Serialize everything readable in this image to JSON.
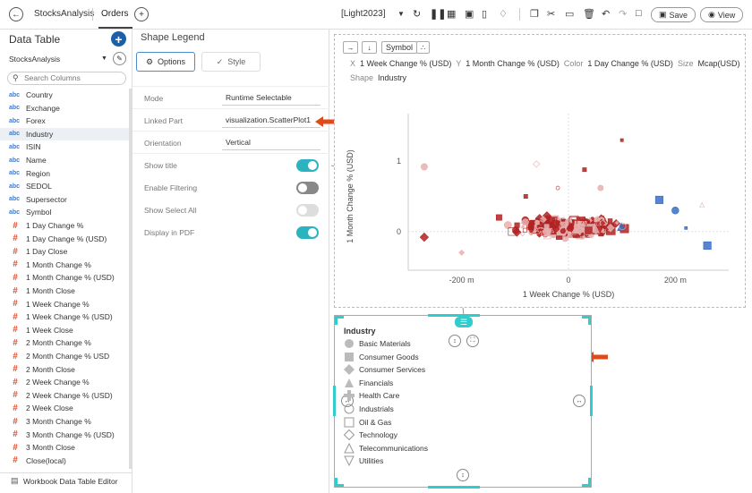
{
  "topbar": {
    "back_icon": "arrow-left-icon",
    "tabs": [
      {
        "label": "StocksAnalysis"
      },
      {
        "label": "Orders"
      }
    ],
    "add_tab_icon": "plus-icon",
    "theme": "[Light2023]",
    "save_label": "Save",
    "view_label": "View"
  },
  "left": {
    "title": "Data Table",
    "source": "StocksAnalysis",
    "search_placeholder": "Search Columns",
    "columns": [
      {
        "type": "abc",
        "name": "Country"
      },
      {
        "type": "abc",
        "name": "Exchange"
      },
      {
        "type": "abc",
        "name": "Forex"
      },
      {
        "type": "abc",
        "name": "Industry"
      },
      {
        "type": "abc",
        "name": "ISIN"
      },
      {
        "type": "abc",
        "name": "Name"
      },
      {
        "type": "abc",
        "name": "Region"
      },
      {
        "type": "abc",
        "name": "SEDOL"
      },
      {
        "type": "abc",
        "name": "Supersector"
      },
      {
        "type": "abc",
        "name": "Symbol"
      },
      {
        "type": "#",
        "name": "1 Day Change %"
      },
      {
        "type": "#",
        "name": "1 Day Change % (USD)"
      },
      {
        "type": "#",
        "name": "1 Day Close"
      },
      {
        "type": "#",
        "name": "1 Month Change %"
      },
      {
        "type": "#",
        "name": "1 Month Change % (USD)"
      },
      {
        "type": "#",
        "name": "1 Month Close"
      },
      {
        "type": "#",
        "name": "1 Week Change %"
      },
      {
        "type": "#",
        "name": "1 Week Change % (USD)"
      },
      {
        "type": "#",
        "name": "1 Week Close"
      },
      {
        "type": "#",
        "name": "2 Month Change %"
      },
      {
        "type": "#",
        "name": "2 Month Change % USD"
      },
      {
        "type": "#",
        "name": "2 Month Close"
      },
      {
        "type": "#",
        "name": "2 Week Change %"
      },
      {
        "type": "#",
        "name": "2 Week Change % (USD)"
      },
      {
        "type": "#",
        "name": "2 Week Close"
      },
      {
        "type": "#",
        "name": "3 Month Change %"
      },
      {
        "type": "#",
        "name": "3 Month Change % (USD)"
      },
      {
        "type": "#",
        "name": "3 Month Close"
      },
      {
        "type": "#",
        "name": "Close(local)"
      }
    ],
    "footer": "Workbook Data Table Editor"
  },
  "mid": {
    "title": "Shape Legend",
    "tab_options": "Options",
    "tab_style": "Style",
    "props": [
      {
        "label": "Mode",
        "value": "Runtime Selectable"
      },
      {
        "label": "Linked Part",
        "value": "visualization.ScatterPlot1"
      },
      {
        "label": "Orientation",
        "value": "Vertical"
      }
    ],
    "toggles": [
      {
        "label": "Show title",
        "state": "on"
      },
      {
        "label": "Enable Filtering",
        "state": "off"
      },
      {
        "label": "Show Select All",
        "state": "disabled"
      },
      {
        "label": "Display in PDF",
        "state": "on"
      }
    ]
  },
  "chart": {
    "symbol_label": "Symbol",
    "mapping": {
      "x_key": "X",
      "x_val": "1 Week Change % (USD)",
      "y_key": "Y",
      "y_val": "1 Month Change % (USD)",
      "color_key": "Color",
      "color_val": "1 Day Change % (USD)",
      "size_key": "Size",
      "size_val": "Mcap(USD)",
      "shape_key": "Shape",
      "shape_val": "Industry"
    }
  },
  "chart_data": {
    "type": "scatter",
    "xlabel": "1 Week Change % (USD)",
    "ylabel": "1 Month Change % (USD)",
    "xticks": [
      "-200 m",
      "0",
      "200 m"
    ],
    "yticks": [
      "1",
      "0"
    ],
    "xlim": [
      -0.3,
      0.3
    ],
    "ylim": [
      -0.55,
      1.55
    ],
    "colors": {
      "neg": "#b22222",
      "mid": "#e8b0b0",
      "pos": "#3a6fc4"
    }
  },
  "legend": {
    "title": "Industry",
    "items": [
      {
        "label": "Basic Materials",
        "shape": "circle"
      },
      {
        "label": "Consumer Goods",
        "shape": "square"
      },
      {
        "label": "Consumer Services",
        "shape": "diamond"
      },
      {
        "label": "Financials",
        "shape": "triangle"
      },
      {
        "label": "Health Care",
        "shape": "cross"
      },
      {
        "label": "Industrials",
        "shape": "circle-outline"
      },
      {
        "label": "Oil & Gas",
        "shape": "square-outline"
      },
      {
        "label": "Technology",
        "shape": "diamond-outline"
      },
      {
        "label": "Telecommunications",
        "shape": "triangle-outline"
      },
      {
        "label": "Utilities",
        "shape": "triangle-down-outline"
      }
    ]
  }
}
